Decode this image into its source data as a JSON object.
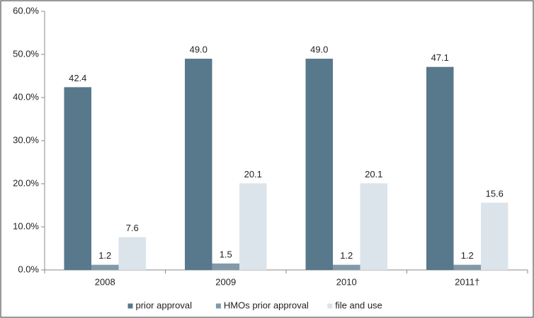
{
  "chart_data": {
    "type": "bar",
    "categories": [
      "2008",
      "2009",
      "2010",
      "2011†"
    ],
    "series": [
      {
        "name": "prior approval",
        "color": "#58788b",
        "values": [
          42.4,
          49.0,
          49.0,
          47.1
        ],
        "value_labels": [
          "42.4",
          "49.0",
          "49.0",
          "47.1"
        ]
      },
      {
        "name": "HMOs prior approval",
        "color": "#8299a8",
        "values": [
          1.2,
          1.5,
          1.2,
          1.2
        ],
        "value_labels": [
          "1.2",
          "1.5",
          "1.2",
          "1.2"
        ]
      },
      {
        "name": "file and use",
        "color": "#dce4eb",
        "values": [
          7.6,
          20.1,
          20.1,
          15.6
        ],
        "value_labels": [
          "7.6",
          "20.1",
          "20.1",
          "15.6"
        ]
      }
    ],
    "ylim": [
      0,
      60
    ],
    "yticks": [
      {
        "value": 0,
        "label": "0.0%"
      },
      {
        "value": 10,
        "label": "10.0%"
      },
      {
        "value": 20,
        "label": "20.0%"
      },
      {
        "value": 30,
        "label": "30.0%"
      },
      {
        "value": 40,
        "label": "40.0%"
      },
      {
        "value": 50,
        "label": "50.0%"
      },
      {
        "value": 60,
        "label": "60.0%"
      }
    ],
    "legend": "bottom"
  }
}
